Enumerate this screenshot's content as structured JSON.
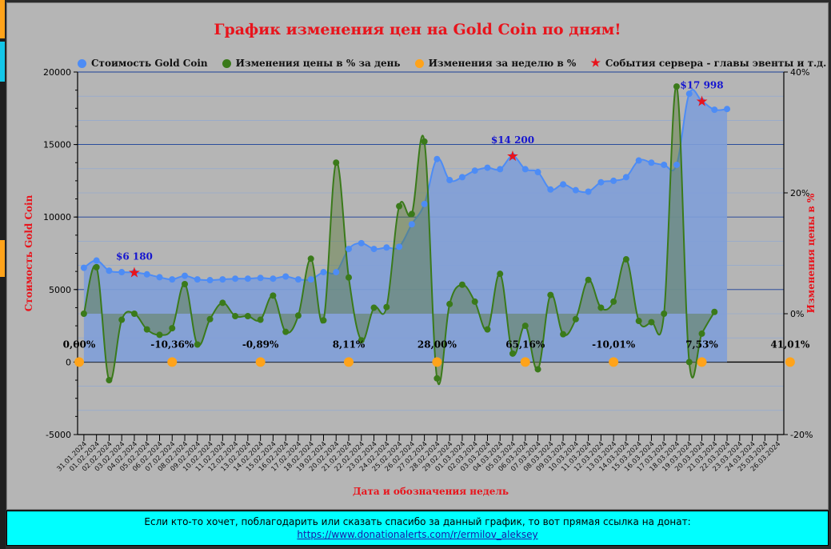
{
  "title": "График изменения цен на Gold Coin по дням!",
  "legend": [
    {
      "label": "Стоимость Gold Coin",
      "color": "#4d8cf5",
      "shape": "circle"
    },
    {
      "label": "Изменения цены в % за день",
      "color": "#3a7a1a",
      "shape": "circle"
    },
    {
      "label": "Изменения за неделю в %",
      "color": "#ffa31a",
      "shape": "circle"
    },
    {
      "label": "События сервера - главы эвенты и т.д.",
      "color": "#e8141c",
      "shape": "star"
    }
  ],
  "footer": {
    "text": "Если кто-то хочет, поблагодарить или сказать спасибо за данный график, то вот прямая ссылка на донат:",
    "link": "https://www.donationalerts.com/r/ermilov_aleksey"
  },
  "colors": {
    "price_line": "#4d8cf5",
    "price_area": "#7f9fd8",
    "daily_line": "#3a7a1a",
    "weekly_dot": "#ffa31a",
    "event_star": "#e8141c",
    "title": "#e8141c",
    "price_label": "#1515d0"
  },
  "chart_data": {
    "type": "line",
    "xlabel": "Дата и обозначения недель",
    "ylabel_left": "Стоимость Gold Coin",
    "ylabel_right": "Изменения цены в %",
    "ylim_left": [
      -5000,
      20000
    ],
    "yticks_left": [
      "20000",
      "15000",
      "10000",
      "5000",
      "0",
      "-5000"
    ],
    "ylim_right": [
      -20,
      40
    ],
    "yticks_right": [
      "40%",
      "20%",
      "0%",
      "-20%"
    ],
    "grid": true,
    "legend_position": "top",
    "categories": [
      "31.01.2024",
      "01.02.2024",
      "02.02.2024",
      "03.02.2024",
      "04.02.2024",
      "05.02.2024",
      "06.02.2024",
      "07.02.2024",
      "08.02.2024",
      "09.02.2024",
      "10.02.2024",
      "11.02.2024",
      "12.02.2024",
      "13.02.2024",
      "14.02.2024",
      "15.02.2024",
      "16.02.2024",
      "17.02.2024",
      "18.02.2024",
      "19.02.2024",
      "20.02.2024",
      "21.02.2024",
      "22.02.2024",
      "23.02.2024",
      "24.02.2024",
      "25.02.2024",
      "26.02.2024",
      "27.02.2024",
      "28.02.2024",
      "29.02.2024",
      "01.03.2024",
      "02.03.2024",
      "03.03.2024",
      "04.03.2024",
      "05.03.2024",
      "06.03.2024",
      "07.03.2024",
      "08.03.2024",
      "09.03.2024",
      "10.03.2024",
      "11.03.2024",
      "12.03.2024",
      "13.03.2024",
      "14.03.2024",
      "15.03.2024",
      "16.03.2024",
      "17.03.2024",
      "18.03.2024",
      "19.03.2024",
      "20.03.2024",
      "21.03.2024",
      "22.03.2024",
      "23.03.2024",
      "24.03.2024",
      "25.03.2024",
      "26.03.2024"
    ],
    "series": [
      {
        "name": "Стоимость Gold Coin",
        "axis": "left",
        "values": [
          6500,
          7000,
          6300,
          6200,
          6180,
          6050,
          5850,
          5700,
          5950,
          5700,
          5650,
          5700,
          5750,
          5750,
          5800,
          5750,
          5900,
          5700,
          5700,
          6200,
          6200,
          7800,
          8200,
          7800,
          7900,
          7950,
          9500,
          10900,
          14000,
          12550,
          12750,
          13200,
          13400,
          13300,
          14200,
          13300,
          13100,
          11900,
          12250,
          11850,
          11750,
          12400,
          12500,
          12750,
          13900,
          13750,
          13600,
          13600,
          18500,
          17998,
          17400,
          17450,
          null,
          null,
          null,
          null
        ]
      },
      {
        "name": "Изменения цены в % за день",
        "axis": "right",
        "values": [
          0,
          7.7,
          -11,
          -1,
          0,
          -2.6,
          -3.5,
          -2.4,
          4.9,
          -5.1,
          -0.9,
          1.8,
          -0.4,
          -0.4,
          -1,
          3,
          -3,
          -0.3,
          9.1,
          -1.1,
          25,
          6,
          -4.4,
          1,
          1.1,
          17.8,
          16.5,
          28.5,
          -10.7,
          1.6,
          4.8,
          2,
          -2.6,
          6.6,
          -6.6,
          -2,
          -9.2,
          3.1,
          -3.4,
          -0.9,
          5.6,
          1,
          2,
          9,
          -1.2,
          -1.4,
          0,
          37.6,
          -8,
          -3.3,
          0.3,
          null,
          null,
          null,
          null,
          null
        ]
      }
    ],
    "weekly": [
      {
        "index": 0,
        "value": 0,
        "label": "0,00%"
      },
      {
        "index": 7,
        "value": -10.36,
        "label": "-10,36%"
      },
      {
        "index": 14,
        "value": -0.89,
        "label": "-0,89%"
      },
      {
        "index": 21,
        "value": 8.11,
        "label": "8,11%"
      },
      {
        "index": 28,
        "value": 28.0,
        "label": "28,00%"
      },
      {
        "index": 35,
        "value": 65.16,
        "label": "65,16%"
      },
      {
        "index": 42,
        "value": -10.01,
        "label": "-10,01%"
      },
      {
        "index": 49,
        "value": 7.53,
        "label": "7,53%"
      },
      {
        "index": 56,
        "value": 41.01,
        "label": "41,01%"
      }
    ],
    "events": [
      {
        "index": 4,
        "price": 6180,
        "label": "$6 180"
      },
      {
        "index": 34,
        "price": 14200,
        "label": "$14 200"
      },
      {
        "index": 49,
        "price": 17998,
        "label": "$17 998"
      }
    ]
  }
}
